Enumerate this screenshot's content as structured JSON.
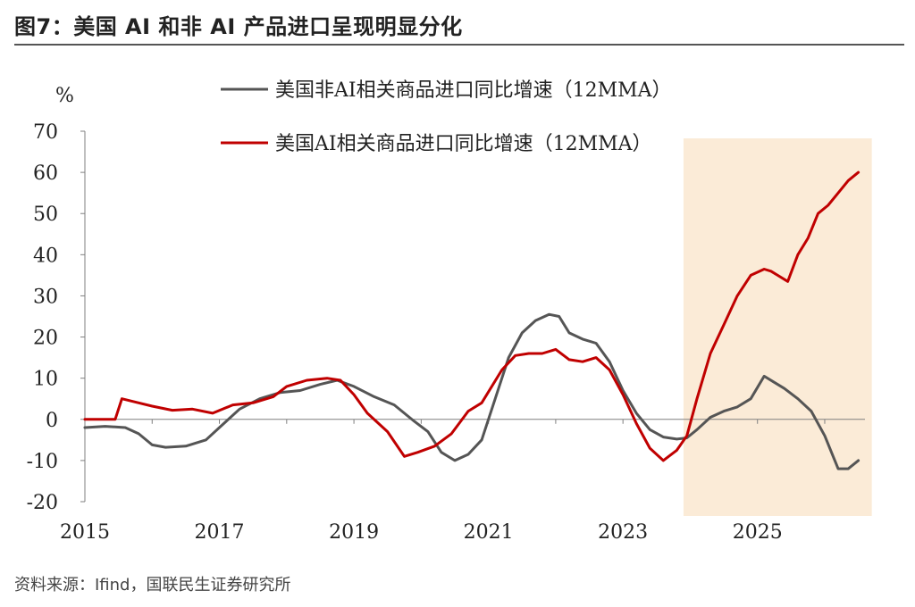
{
  "header": {
    "title": "图7：美国 AI 和非 AI 产品进口呈现明显分化"
  },
  "footer": {
    "source": "资料来源：Ifind，国联民生证券研究所"
  },
  "colors": {
    "non_ai": "#555555",
    "ai": "#c00000",
    "highlight": "#fbebd7",
    "axis": "#7f7f7f"
  },
  "chart_data": {
    "type": "line",
    "ylabel": "%",
    "ylim": [
      -20,
      70
    ],
    "yticks": [
      -20,
      -10,
      0,
      10,
      20,
      30,
      40,
      50,
      60,
      70
    ],
    "xlim": [
      2015.0,
      2026.6
    ],
    "xticks": [
      2015,
      2017,
      2019,
      2021,
      2023,
      2025
    ],
    "highlight_range": [
      2023.9,
      2026.7
    ],
    "legend": "top",
    "series": [
      {
        "name": "美国非AI相关商品进口同比增速（12MMA）",
        "color": "#555555",
        "x": [
          2015.0,
          2015.3,
          2015.6,
          2015.8,
          2016.0,
          2016.2,
          2016.5,
          2016.8,
          2017.0,
          2017.3,
          2017.6,
          2017.9,
          2018.2,
          2018.5,
          2018.75,
          2019.0,
          2019.3,
          2019.6,
          2019.9,
          2020.1,
          2020.3,
          2020.5,
          2020.7,
          2020.9,
          2021.1,
          2021.3,
          2021.5,
          2021.7,
          2021.9,
          2022.05,
          2022.2,
          2022.4,
          2022.6,
          2022.8,
          2023.0,
          2023.2,
          2023.4,
          2023.6,
          2023.8,
          2023.95,
          2024.1,
          2024.3,
          2024.5,
          2024.7,
          2024.9,
          2025.1,
          2025.25,
          2025.4,
          2025.6,
          2025.8,
          2026.0,
          2026.2,
          2026.35,
          2026.5
        ],
        "values": [
          -2,
          -1.7,
          -2,
          -3.5,
          -6.2,
          -6.8,
          -6.5,
          -5,
          -2,
          2.5,
          5,
          6.5,
          7,
          8.5,
          9.5,
          8,
          5.5,
          3.5,
          -0.5,
          -3,
          -8,
          -10,
          -8.5,
          -5,
          5,
          15,
          21,
          24,
          25.5,
          25,
          21,
          19.5,
          18.5,
          14,
          7,
          1.5,
          -2.5,
          -4.3,
          -4.8,
          -4.5,
          -2.5,
          0.5,
          2,
          3,
          5,
          10.5,
          9,
          7.5,
          5,
          2,
          -4,
          -12,
          -12,
          -10
        ]
      },
      {
        "name": "美国AI相关商品进口同比增速（12MMA）",
        "color": "#c00000",
        "x": [
          2015.0,
          2015.2,
          2015.45,
          2015.55,
          2015.8,
          2016.0,
          2016.3,
          2016.6,
          2016.9,
          2017.2,
          2017.5,
          2017.8,
          2018.0,
          2018.3,
          2018.6,
          2018.8,
          2019.0,
          2019.2,
          2019.5,
          2019.75,
          2019.95,
          2020.2,
          2020.45,
          2020.7,
          2020.9,
          2021.2,
          2021.4,
          2021.6,
          2021.8,
          2022.0,
          2022.2,
          2022.4,
          2022.6,
          2022.8,
          2023.0,
          2023.2,
          2023.4,
          2023.6,
          2023.8,
          2023.95,
          2024.1,
          2024.3,
          2024.5,
          2024.7,
          2024.9,
          2025.1,
          2025.2,
          2025.3,
          2025.45,
          2025.6,
          2025.75,
          2025.9,
          2026.05,
          2026.2,
          2026.35,
          2026.5
        ],
        "values": [
          0,
          0,
          0,
          5,
          4,
          3.2,
          2.2,
          2.5,
          1.5,
          3.5,
          4,
          5.5,
          8,
          9.5,
          10,
          9.5,
          6,
          1.5,
          -3,
          -9,
          -8,
          -6.5,
          -3.5,
          2,
          4,
          12,
          15.5,
          16,
          16,
          17,
          14.5,
          14,
          15,
          12,
          6,
          -1,
          -7,
          -10,
          -7.5,
          -4,
          5,
          16,
          23,
          30,
          35,
          36.5,
          36,
          35,
          33.5,
          40,
          44,
          50,
          52,
          55,
          58,
          60
        ]
      }
    ]
  }
}
